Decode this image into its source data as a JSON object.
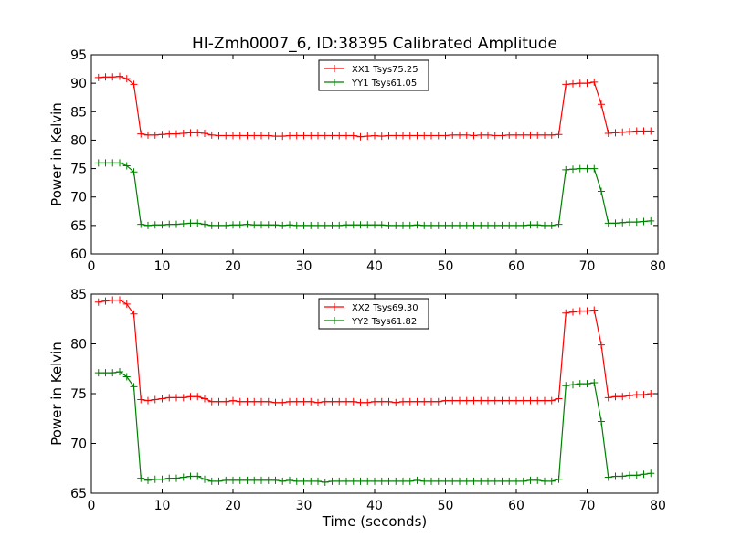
{
  "title": "HI-Zmh0007_6, ID:38395 Calibrated Amplitude",
  "chart_data": [
    {
      "type": "line",
      "ylabel": "Power in Kelvin",
      "xlabel": "",
      "xlim": [
        0,
        80
      ],
      "ylim": [
        60,
        95
      ],
      "xticks": [
        0,
        10,
        20,
        30,
        40,
        50,
        60,
        70,
        80
      ],
      "yticks": [
        60,
        65,
        70,
        75,
        80,
        85,
        90,
        95
      ],
      "legend_position": "top-center",
      "grid": false,
      "x": [
        1,
        2,
        3,
        4,
        5,
        6,
        7,
        8,
        9,
        10,
        11,
        12,
        13,
        14,
        15,
        16,
        17,
        18,
        19,
        20,
        21,
        22,
        23,
        24,
        25,
        26,
        27,
        28,
        29,
        30,
        31,
        32,
        33,
        34,
        35,
        36,
        37,
        38,
        39,
        40,
        41,
        42,
        43,
        44,
        45,
        46,
        47,
        48,
        49,
        50,
        51,
        52,
        53,
        54,
        55,
        56,
        57,
        58,
        59,
        60,
        61,
        62,
        63,
        64,
        65,
        66,
        67,
        68,
        69,
        70,
        71,
        72,
        73,
        74,
        75,
        76,
        77,
        78,
        79
      ],
      "series": [
        {
          "name": "XX1 Tsys75.25",
          "color": "#ff0000",
          "values": [
            91.0,
            91.1,
            91.1,
            91.2,
            90.8,
            89.8,
            81.1,
            80.9,
            80.9,
            81.0,
            81.1,
            81.1,
            81.2,
            81.3,
            81.3,
            81.2,
            80.9,
            80.8,
            80.8,
            80.8,
            80.8,
            80.8,
            80.8,
            80.8,
            80.8,
            80.7,
            80.7,
            80.8,
            80.8,
            80.8,
            80.8,
            80.8,
            80.8,
            80.8,
            80.8,
            80.8,
            80.8,
            80.6,
            80.7,
            80.8,
            80.7,
            80.8,
            80.8,
            80.8,
            80.8,
            80.8,
            80.8,
            80.8,
            80.8,
            80.8,
            80.9,
            80.9,
            80.9,
            80.8,
            80.9,
            80.9,
            80.8,
            80.8,
            80.9,
            80.9,
            80.9,
            80.9,
            80.9,
            80.9,
            80.9,
            81.0,
            89.8,
            89.9,
            90.0,
            90.0,
            90.2,
            86.3,
            81.2,
            81.3,
            81.4,
            81.5,
            81.6,
            81.6,
            81.6
          ]
        },
        {
          "name": "YY1 Tsys61.05",
          "color": "#008000",
          "values": [
            76.0,
            76.0,
            76.0,
            76.0,
            75.5,
            74.4,
            65.2,
            65.0,
            65.1,
            65.1,
            65.2,
            65.2,
            65.3,
            65.4,
            65.4,
            65.2,
            65.0,
            65.0,
            65.0,
            65.1,
            65.1,
            65.2,
            65.1,
            65.1,
            65.1,
            65.1,
            65.0,
            65.1,
            65.0,
            65.0,
            65.0,
            65.0,
            65.0,
            65.0,
            65.0,
            65.1,
            65.1,
            65.1,
            65.1,
            65.1,
            65.1,
            65.0,
            65.0,
            65.0,
            65.0,
            65.1,
            65.0,
            65.0,
            65.0,
            65.0,
            65.0,
            65.0,
            65.0,
            65.0,
            65.0,
            65.0,
            65.0,
            65.0,
            65.0,
            65.0,
            65.0,
            65.1,
            65.1,
            65.0,
            65.0,
            65.2,
            74.8,
            74.9,
            75.0,
            75.0,
            75.0,
            71.0,
            65.4,
            65.4,
            65.5,
            65.6,
            65.6,
            65.7,
            65.8
          ]
        }
      ]
    },
    {
      "type": "line",
      "ylabel": "Power in Kelvin",
      "xlabel": "Time (seconds)",
      "xlim": [
        0,
        80
      ],
      "ylim": [
        65,
        85
      ],
      "xticks": [
        0,
        10,
        20,
        30,
        40,
        50,
        60,
        70,
        80
      ],
      "yticks": [
        65,
        70,
        75,
        80,
        85
      ],
      "legend_position": "top-center",
      "grid": false,
      "x": [
        1,
        2,
        3,
        4,
        5,
        6,
        7,
        8,
        9,
        10,
        11,
        12,
        13,
        14,
        15,
        16,
        17,
        18,
        19,
        20,
        21,
        22,
        23,
        24,
        25,
        26,
        27,
        28,
        29,
        30,
        31,
        32,
        33,
        34,
        35,
        36,
        37,
        38,
        39,
        40,
        41,
        42,
        43,
        44,
        45,
        46,
        47,
        48,
        49,
        50,
        51,
        52,
        53,
        54,
        55,
        56,
        57,
        58,
        59,
        60,
        61,
        62,
        63,
        64,
        65,
        66,
        67,
        68,
        69,
        70,
        71,
        72,
        73,
        74,
        75,
        76,
        77,
        78,
        79
      ],
      "series": [
        {
          "name": "XX2 Tsys69.30",
          "color": "#ff0000",
          "values": [
            84.2,
            84.3,
            84.4,
            84.4,
            84.0,
            83.0,
            74.4,
            74.3,
            74.4,
            74.5,
            74.6,
            74.6,
            74.6,
            74.7,
            74.7,
            74.5,
            74.2,
            74.2,
            74.2,
            74.3,
            74.2,
            74.2,
            74.2,
            74.2,
            74.2,
            74.1,
            74.1,
            74.2,
            74.2,
            74.2,
            74.2,
            74.1,
            74.2,
            74.2,
            74.2,
            74.2,
            74.2,
            74.1,
            74.1,
            74.2,
            74.2,
            74.2,
            74.1,
            74.2,
            74.2,
            74.2,
            74.2,
            74.2,
            74.2,
            74.3,
            74.3,
            74.3,
            74.3,
            74.3,
            74.3,
            74.3,
            74.3,
            74.3,
            74.3,
            74.3,
            74.3,
            74.3,
            74.3,
            74.3,
            74.3,
            74.5,
            83.1,
            83.2,
            83.3,
            83.3,
            83.4,
            79.9,
            74.6,
            74.7,
            74.7,
            74.8,
            74.9,
            74.9,
            75.0
          ]
        },
        {
          "name": "YY2 Tsys61.82",
          "color": "#008000",
          "values": [
            77.1,
            77.1,
            77.1,
            77.2,
            76.7,
            75.7,
            66.5,
            66.3,
            66.4,
            66.4,
            66.5,
            66.5,
            66.6,
            66.7,
            66.7,
            66.4,
            66.2,
            66.2,
            66.3,
            66.3,
            66.3,
            66.3,
            66.3,
            66.3,
            66.3,
            66.3,
            66.2,
            66.3,
            66.2,
            66.2,
            66.2,
            66.2,
            66.1,
            66.2,
            66.2,
            66.2,
            66.2,
            66.2,
            66.2,
            66.2,
            66.2,
            66.2,
            66.2,
            66.2,
            66.2,
            66.3,
            66.2,
            66.2,
            66.2,
            66.2,
            66.2,
            66.2,
            66.2,
            66.2,
            66.2,
            66.2,
            66.2,
            66.2,
            66.2,
            66.2,
            66.2,
            66.3,
            66.3,
            66.2,
            66.2,
            66.4,
            75.8,
            75.9,
            76.0,
            76.0,
            76.1,
            72.2,
            66.6,
            66.7,
            66.7,
            66.8,
            66.8,
            66.9,
            67.0
          ]
        }
      ]
    }
  ]
}
